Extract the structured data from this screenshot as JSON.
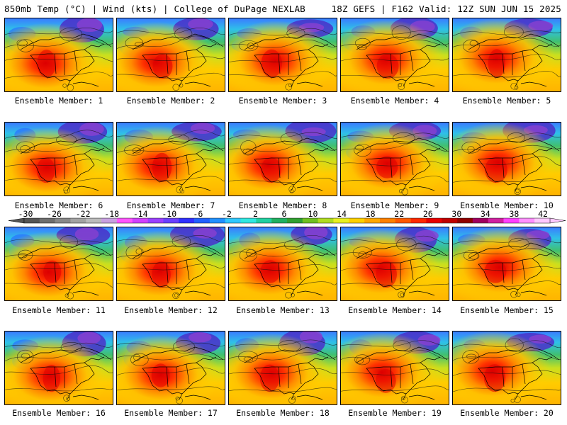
{
  "header": {
    "left": "850mb Temp (°C) | Wind (kts) | College of DuPage NEXLAB",
    "right": "18Z GEFS | F162 Valid: 12Z SUN JUN 15 2025"
  },
  "panels": [
    {
      "caption": "Ensemble Member: 1"
    },
    {
      "caption": "Ensemble Member: 2"
    },
    {
      "caption": "Ensemble Member: 3"
    },
    {
      "caption": "Ensemble Member: 4"
    },
    {
      "caption": "Ensemble Member: 5"
    },
    {
      "caption": "Ensemble Member: 6"
    },
    {
      "caption": "Ensemble Member: 7"
    },
    {
      "caption": "Ensemble Member: 8"
    },
    {
      "caption": "Ensemble Member: 9"
    },
    {
      "caption": "Ensemble Member: 10"
    },
    {
      "caption": "Ensemble Member: 11"
    },
    {
      "caption": "Ensemble Member: 12"
    },
    {
      "caption": "Ensemble Member: 13"
    },
    {
      "caption": "Ensemble Member: 14"
    },
    {
      "caption": "Ensemble Member: 15"
    },
    {
      "caption": "Ensemble Member: 16"
    },
    {
      "caption": "Ensemble Member: 17"
    },
    {
      "caption": "Ensemble Member: 18"
    },
    {
      "caption": "Ensemble Member: 19"
    },
    {
      "caption": "Ensemble Member: 20"
    }
  ],
  "colorbar": {
    "labels": [
      "-30",
      "-26",
      "-22",
      "-18",
      "-14",
      "-10",
      "-6",
      "-2",
      "2",
      "6",
      "10",
      "14",
      "18",
      "22",
      "26",
      "30",
      "34",
      "38",
      "42"
    ],
    "colors": [
      "#555555",
      "#6e6e6e",
      "#888888",
      "#a2a2a2",
      "#bbbbbb",
      "#c8a0e0",
      "#ff55ff",
      "#d040ff",
      "#9a40ff",
      "#6a40ff",
      "#3030ff",
      "#2060ff",
      "#2090ff",
      "#30c8ff",
      "#30e8e0",
      "#20d0a0",
      "#20b060",
      "#30a030",
      "#70c020",
      "#b0dc20",
      "#e8f020",
      "#ffd000",
      "#ffa800",
      "#ff8000",
      "#ff5800",
      "#ff2800",
      "#e80000",
      "#c00000",
      "#900000",
      "#a00060",
      "#d020a0",
      "#ff40ff",
      "#ff90ff",
      "#ffc8ff"
    ]
  }
}
